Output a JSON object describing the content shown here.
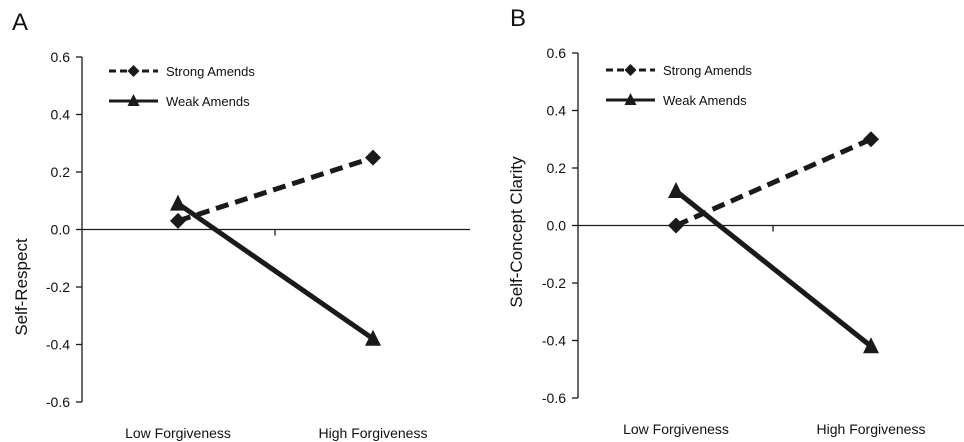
{
  "chart_data": [
    {
      "type": "line",
      "panel_label": "A",
      "ylabel": "Self-Respect",
      "xlabel": "",
      "categories": [
        "Low Forgiveness",
        "High Forgiveness"
      ],
      "ylim": [
        -0.6,
        0.6
      ],
      "yticks": [
        "0.6",
        "0.4",
        "0.2",
        "0.0",
        "-0.2",
        "-0.4",
        "-0.6"
      ],
      "series": [
        {
          "name": "Strong Amends",
          "values": [
            0.03,
            0.25
          ],
          "style": "dashed",
          "marker": "diamond"
        },
        {
          "name": "Weak Amends",
          "values": [
            0.09,
            -0.38
          ],
          "style": "solid",
          "marker": "triangle"
        }
      ],
      "legend_position": "top-left",
      "grid": false
    },
    {
      "type": "line",
      "panel_label": "B",
      "ylabel": "Self-Concept Clarity",
      "xlabel": "",
      "categories": [
        "Low Forgiveness",
        "High Forgiveness"
      ],
      "ylim": [
        -0.6,
        0.6
      ],
      "yticks": [
        "0.6",
        "0.4",
        "0.2",
        "0.0",
        "-0.2",
        "-0.4",
        "-0.6"
      ],
      "series": [
        {
          "name": "Strong Amends",
          "values": [
            0.0,
            0.3
          ],
          "style": "dashed",
          "marker": "diamond"
        },
        {
          "name": "Weak Amends",
          "values": [
            0.12,
            -0.42
          ],
          "style": "solid",
          "marker": "triangle"
        }
      ],
      "legend_position": "top-left",
      "grid": false
    }
  ],
  "colors": {
    "line": "#1a1a1a"
  }
}
